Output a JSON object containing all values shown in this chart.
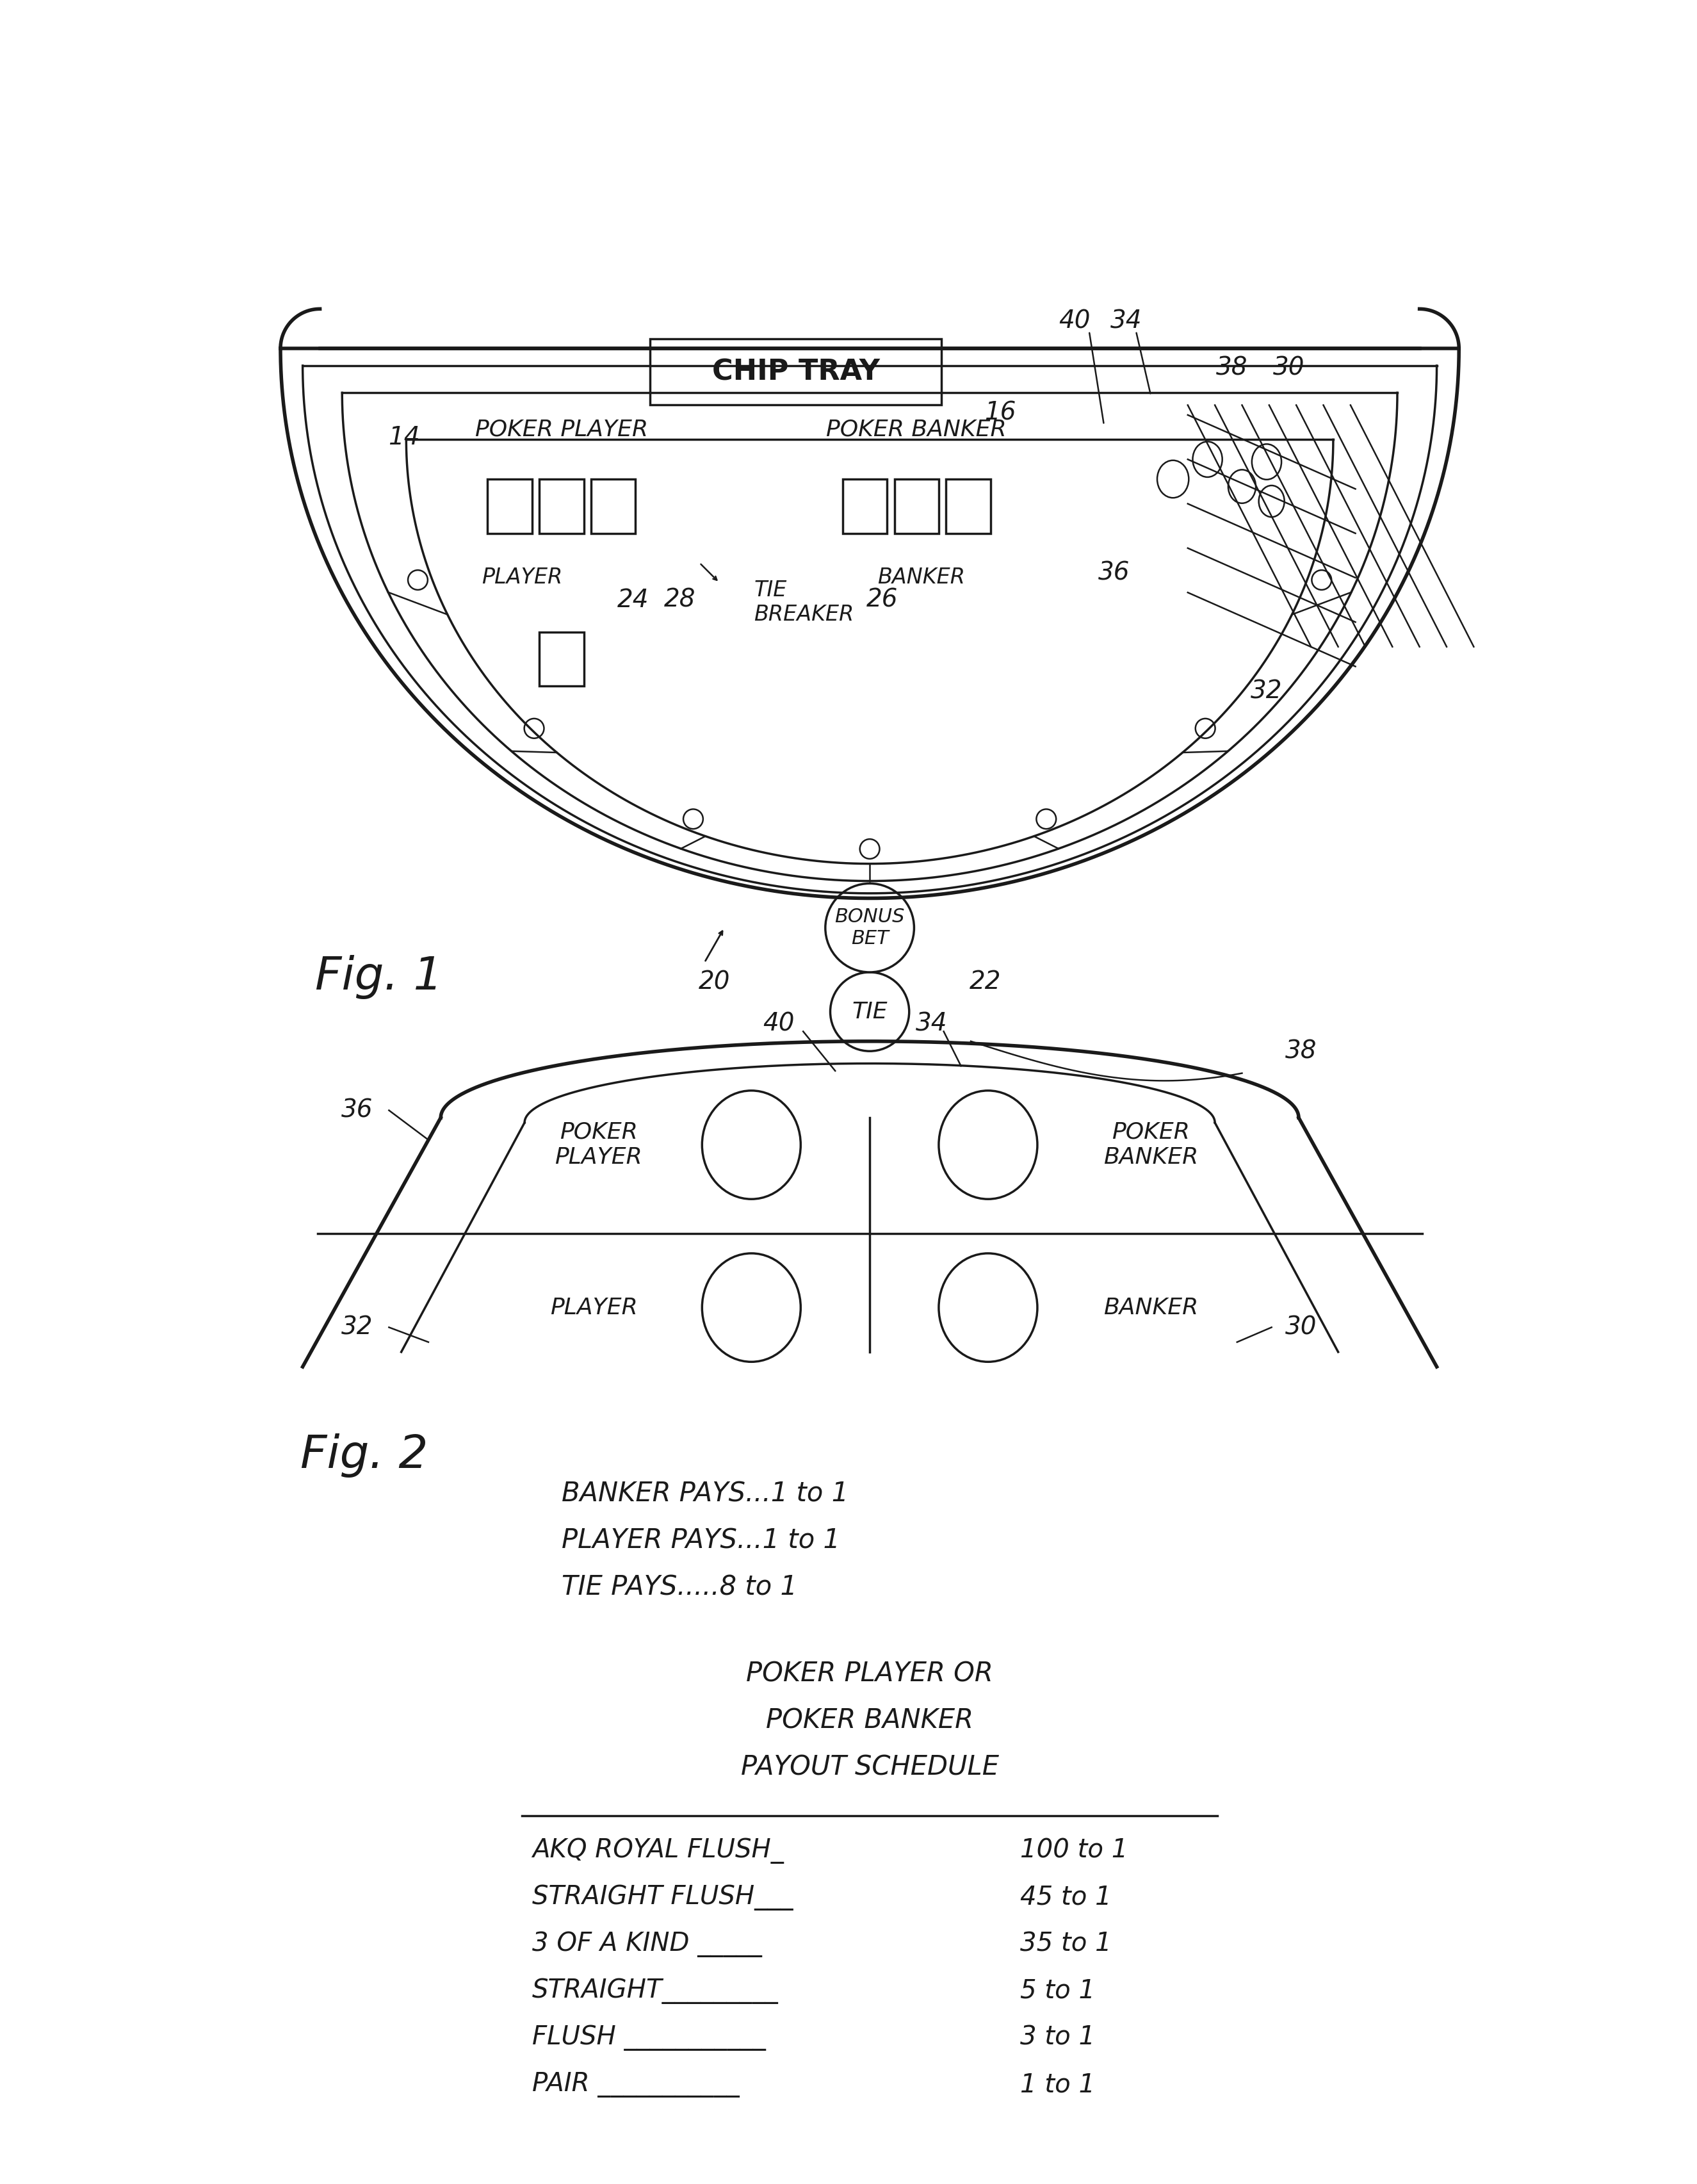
{
  "bg_color": "#ffffff",
  "line_color": "#1a1a1a",
  "fig1": {
    "chip_tray_label": "CHIP TRAY",
    "poker_player_label": "POKER PLAYER",
    "poker_banker_label": "POKER BANKER",
    "player_label": "PLAYER",
    "banker_label": "BANKER",
    "tie_breaker_label": "TIE\nBREAKER",
    "fig_label": "Fig. 1",
    "ref_nums": [
      [
        "14",
        380,
        355
      ],
      [
        "16",
        1590,
        305
      ],
      [
        "20",
        1010,
        1460
      ],
      [
        "22",
        1560,
        1460
      ],
      [
        "24",
        845,
        685
      ],
      [
        "28",
        940,
        685
      ],
      [
        "26",
        1350,
        685
      ],
      [
        "32",
        2130,
        870
      ],
      [
        "36",
        1820,
        630
      ],
      [
        "38",
        2060,
        215
      ],
      [
        "30",
        2175,
        215
      ],
      [
        "40",
        1740,
        120
      ],
      [
        "34",
        1845,
        120
      ]
    ]
  },
  "fig2": {
    "fig_label": "Fig. 2",
    "tie_label": "TIE",
    "bonus_bet_label": "BONUS\nBET",
    "poker_player_label": "POKER\nPLAYER",
    "poker_banker_label": "POKER\nBANKER",
    "player_label": "PLAYER",
    "banker_label": "BANKER",
    "ref_nums": [
      [
        "40",
        1140,
        1545
      ],
      [
        "34",
        1450,
        1545
      ],
      [
        "38",
        2200,
        1600
      ],
      [
        "36",
        285,
        1720
      ],
      [
        "32",
        285,
        2160
      ],
      [
        "30",
        2200,
        2160
      ]
    ],
    "payout_lines": [
      "BANKER PAYS...1 to 1",
      "PLAYER PAYS...1 to 1",
      "TIE PAYS.....8 to 1"
    ],
    "payout_header": [
      "POKER PLAYER OR",
      "POKER BANKER",
      "PAYOUT SCHEDULE"
    ],
    "payout_table": [
      [
        "AKQ ROYAL FLUSH_100 to 1",
        "AKQ ROYAL FLUSH_",
        "100 to 1"
      ],
      [
        "STRAIGHT FLUSH___45 to 1",
        "STRAIGHT FLUSH___",
        "45 to 1"
      ],
      [
        "3 OF A KIND _____35 to 1",
        "3 OF A KIND _____",
        "35 to 1"
      ],
      [
        "STRAIGHT_________5 to 1",
        "STRAIGHT_________",
        "5 to 1"
      ],
      [
        "FLUSH ___________3 to 1",
        "FLUSH ___________",
        "3 to 1"
      ],
      [
        "PAIR ___________1 to 1",
        "PAIR ___________",
        "1 to 1"
      ]
    ]
  }
}
